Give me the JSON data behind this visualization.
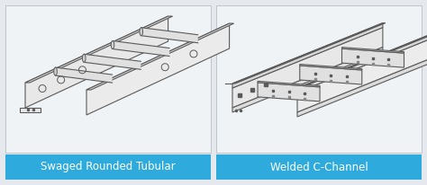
{
  "bg_color": "#e5e9ee",
  "box_bg": "#f0f3f6",
  "box_border": "#c0c5cc",
  "label_bg": "#2eaadc",
  "label_text_color": "#ffffff",
  "label1": "Swaged Rounded Tubular",
  "label2": "Welded C-Channel",
  "label_fontsize": 8.5,
  "line_color": "#5a5a5a",
  "line_color_light": "#909090",
  "fig_width": 4.74,
  "fig_height": 2.06,
  "dpi": 100
}
